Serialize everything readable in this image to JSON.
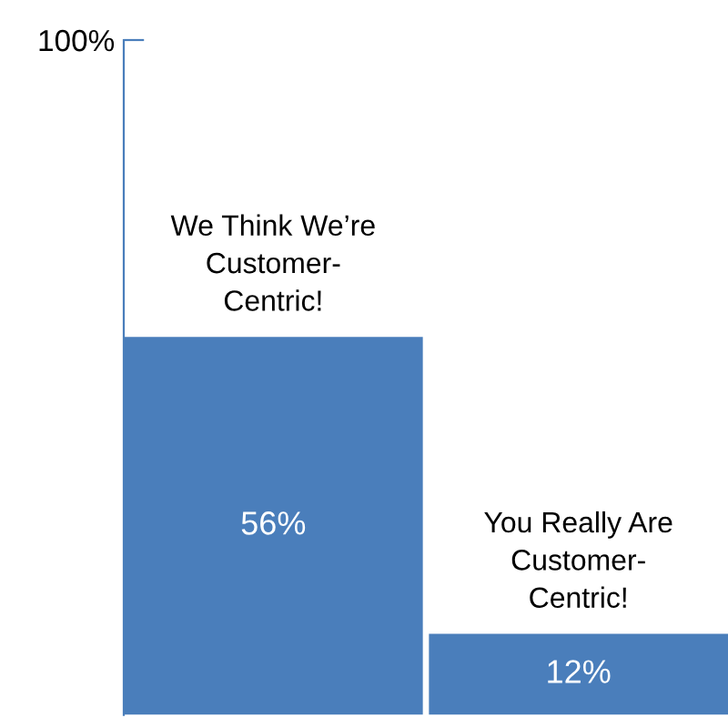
{
  "chart_data": {
    "type": "bar",
    "categories": [
      null,
      null
    ],
    "values": [
      56,
      12
    ],
    "value_labels": [
      "56%",
      "12%"
    ],
    "color": "#4a7ebb",
    "ylim": [
      0,
      100
    ],
    "yticks": [
      {
        "value": 100,
        "label": "100%"
      }
    ],
    "tick_labels": "y",
    "grid": false,
    "annotations": [
      "We Think We’re\nCustomer-\nCentric!",
      "You Really Are\nCustomer-\nCentric!"
    ]
  }
}
